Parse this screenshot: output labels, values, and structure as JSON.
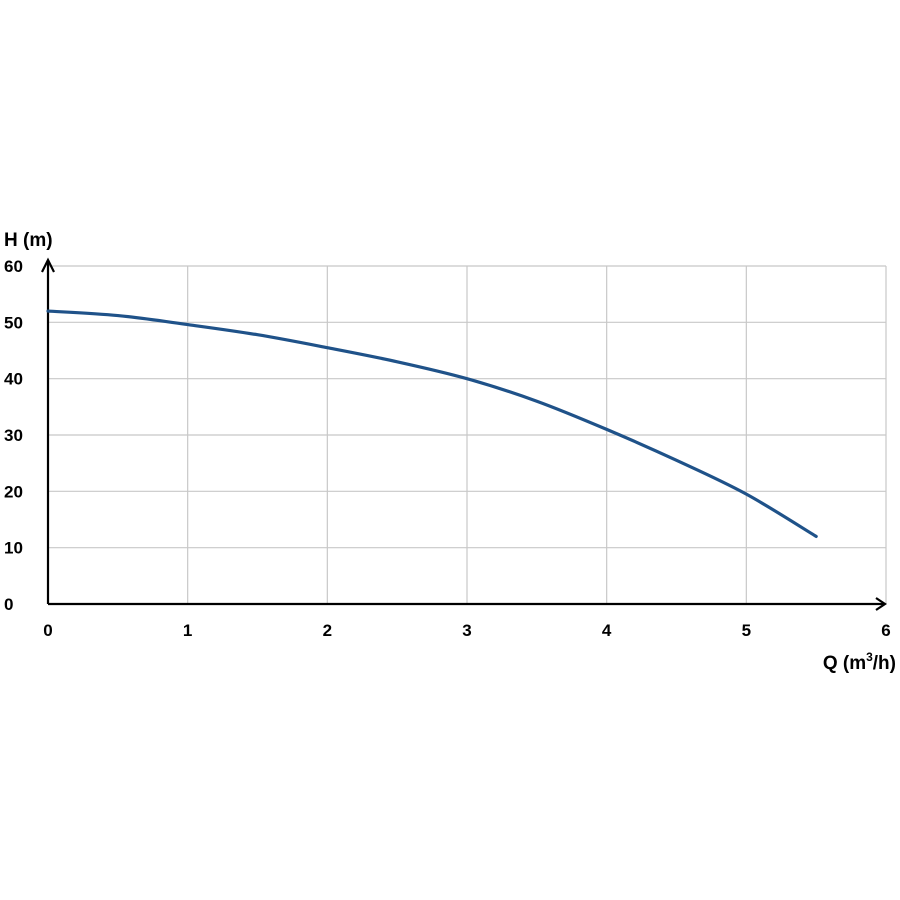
{
  "chart_data": {
    "type": "line",
    "title": "",
    "xlabel": {
      "prefix": "Q (m",
      "superscript": "3",
      "suffix": "/h)"
    },
    "ylabel": "H (m)",
    "xlim": [
      0,
      6
    ],
    "ylim": [
      0,
      60
    ],
    "x_ticks": [
      0,
      1,
      2,
      3,
      4,
      5,
      6
    ],
    "y_ticks": [
      0,
      10,
      20,
      30,
      40,
      50,
      60
    ],
    "x_tick_labels": [
      "0",
      "1",
      "2",
      "3",
      "4",
      "5",
      "6"
    ],
    "y_tick_labels": [
      "0",
      "10",
      "20",
      "30",
      "40",
      "50",
      "60"
    ],
    "grid": true,
    "legend": "none",
    "series": [
      {
        "color": "#1f5289",
        "x": [
          0,
          0.5,
          1,
          1.5,
          2,
          2.5,
          3,
          3.5,
          4,
          4.5,
          5,
          5.5
        ],
        "y": [
          52,
          51.2,
          49.6,
          47.8,
          45.5,
          43,
          40,
          36,
          31,
          25.5,
          19.5,
          12
        ]
      }
    ]
  }
}
